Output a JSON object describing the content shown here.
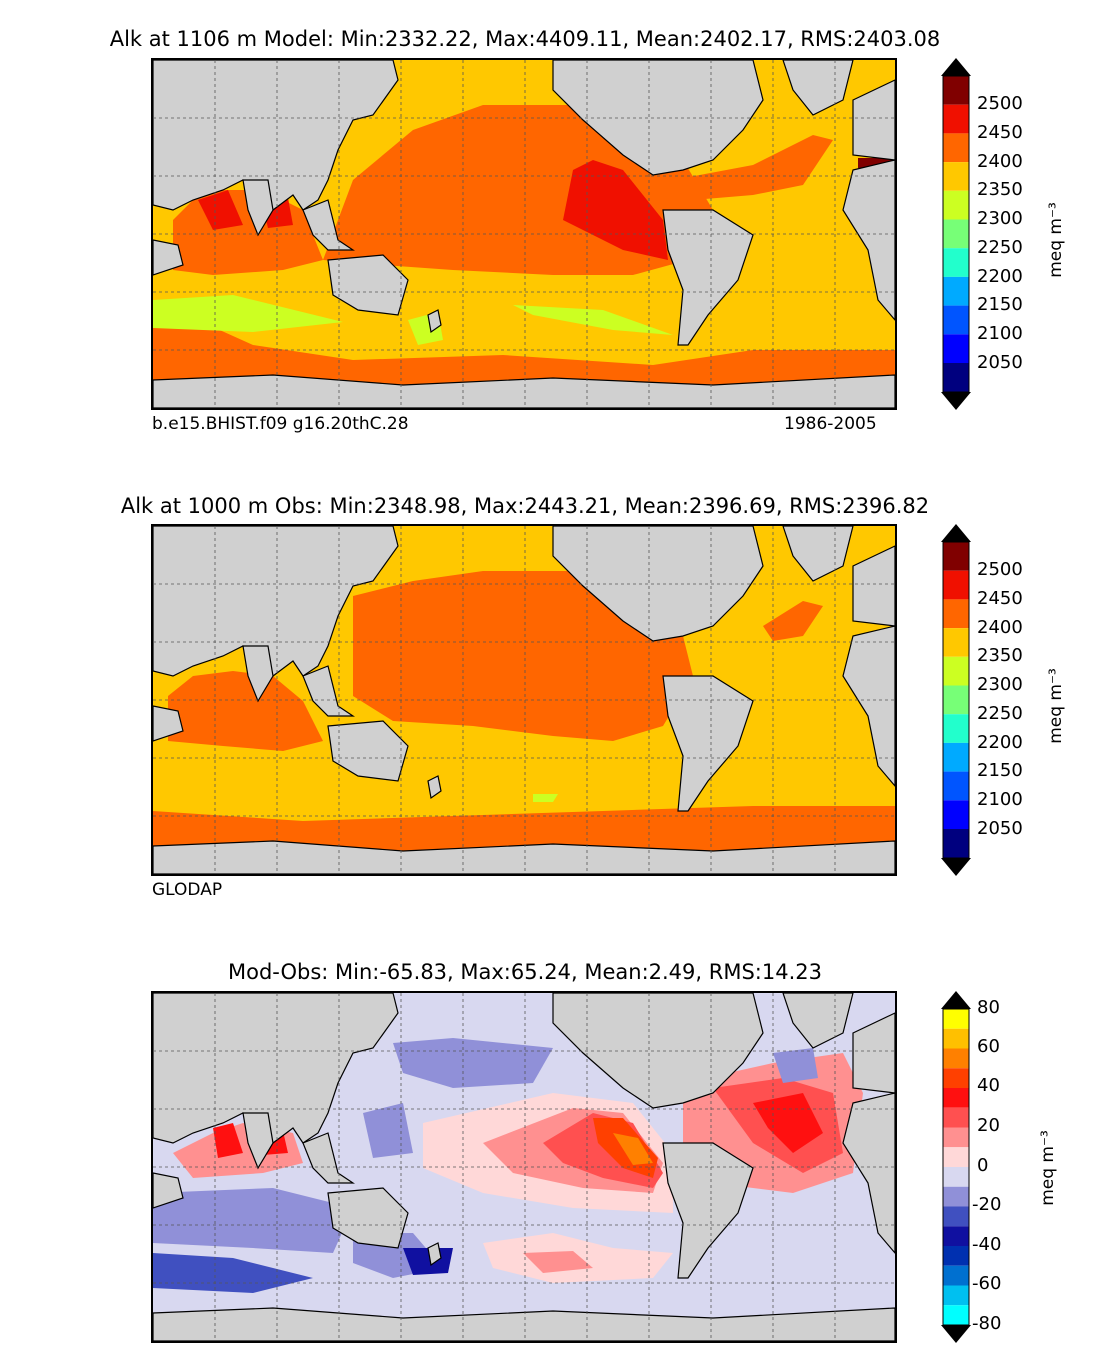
{
  "panels": [
    {
      "title": "Alk at 1106 m Model: Min:2332.22, Max:4409.11, Mean:2402.17, RMS:2403.08",
      "caption_left": "b.e15.BHIST.f09 g16.20thC.28",
      "caption_right": "1986-2005",
      "colorbar": {
        "ticks": [
          "2500",
          "2450",
          "2400",
          "2350",
          "2300",
          "2250",
          "2200",
          "2150",
          "2100",
          "2050"
        ],
        "unit": "meq m⁻³",
        "colors": [
          "#00007f",
          "#0000ff",
          "#0055ff",
          "#00aaff",
          "#22ffcc",
          "#77ff77",
          "#ccff22",
          "#ffc800",
          "#ff6600",
          "#f01000",
          "#800000"
        ]
      }
    },
    {
      "title": "Alk at 1000 m Obs: Min:2348.98, Max:2443.21, Mean:2396.69, RMS:2396.82",
      "caption_left": "GLODAP",
      "caption_right": "",
      "colorbar": {
        "ticks": [
          "2500",
          "2450",
          "2400",
          "2350",
          "2300",
          "2250",
          "2200",
          "2150",
          "2100",
          "2050"
        ],
        "unit": "meq m⁻³",
        "colors": [
          "#00007f",
          "#0000ff",
          "#0055ff",
          "#00aaff",
          "#22ffcc",
          "#77ff77",
          "#ccff22",
          "#ffc800",
          "#ff6600",
          "#f01000",
          "#800000"
        ]
      }
    },
    {
      "title": "Mod-Obs: Min:-65.83, Max:65.24, Mean:2.49, RMS:14.23",
      "caption_left": "",
      "caption_right": "",
      "colorbar": {
        "ticks": [
          "80",
          "60",
          "40",
          "20",
          "0",
          "-20",
          "-40",
          "-60",
          "-80"
        ],
        "unit": "meq m⁻³",
        "colors": [
          "#00ffff",
          "#00c0f0",
          "#0070d0",
          "#0030b0",
          "#1010a0",
          "#4050c0",
          "#9090d8",
          "#d8d8f0",
          "#ffd8d8",
          "#ff9090",
          "#ff5050",
          "#ff1010",
          "#ff4000",
          "#ff8000",
          "#ffc000",
          "#ffff00"
        ]
      }
    }
  ],
  "map_colors": {
    "land": "#d0d0d0",
    "coast": "#000000",
    "grid": "#555555"
  }
}
